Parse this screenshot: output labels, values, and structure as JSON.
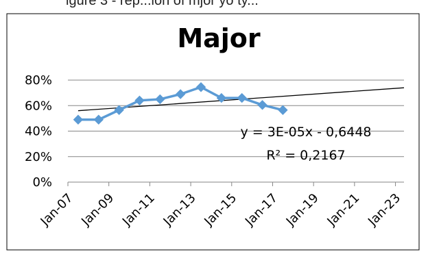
{
  "header_fragment": "igure 3 - rep...ion of mjor yo ty...",
  "chart_data": {
    "type": "line",
    "title": "Major",
    "xlabel": "",
    "ylabel": "",
    "ylim": [
      0,
      0.8
    ],
    "xlim": [
      "2007-01",
      "2023-06"
    ],
    "yticks": [
      "0%",
      "20%",
      "40%",
      "60%",
      "80%"
    ],
    "xticks": [
      "Jan-07",
      "Jan-09",
      "Jan-11",
      "Jan-13",
      "Jan-15",
      "Jan-17",
      "Jan-19",
      "Jan-21",
      "Jan-23"
    ],
    "grid": true,
    "legend": "none",
    "series": [
      {
        "x": [
          "2007-07",
          "2008-07",
          "2009-07",
          "2010-07",
          "2011-07",
          "2012-07",
          "2013-07",
          "2014-07",
          "2015-07",
          "2016-07",
          "2017-07"
        ],
        "values": [
          0.49,
          0.49,
          0.565,
          0.64,
          0.65,
          0.69,
          0.745,
          0.66,
          0.66,
          0.605,
          0.565
        ],
        "color": "#5b9bd5"
      }
    ],
    "trendline": {
      "x_start": "2007-07",
      "x_end": "2023-06",
      "y_start": 0.56,
      "y_end": 0.74,
      "equation": "y = 3E-05x - 0,6448",
      "r_squared": "R² = 0,2167",
      "color": "#000000"
    }
  }
}
